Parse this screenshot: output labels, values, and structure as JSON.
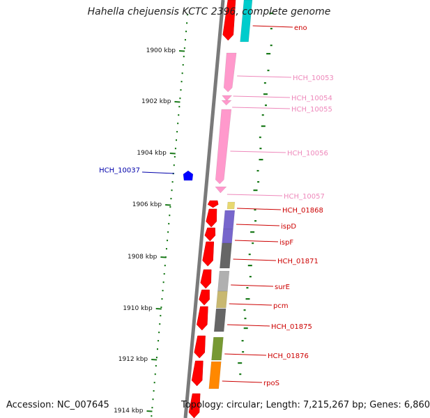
{
  "title": "Hahella chejuensis KCTC 2396, complete genome",
  "footer": {
    "accession": "Accession: NC_007645",
    "topology": "Topology: circular; Length: 7,215,267 bp; Genes: 6,860"
  },
  "ticks": [
    "1900 kbp",
    "1902 kbp",
    "1904 kbp",
    "1906 kbp",
    "1908 kbp",
    "1910 kbp",
    "1912 kbp",
    "1914 kbp"
  ],
  "colors": {
    "backbone": "#808080",
    "red_gene": "#ff0000",
    "pink_gene": "#ff99cc",
    "label_red": "#cc0000",
    "label_pink": "#ee88bb",
    "label_blue": "#0000aa",
    "tick_green": "#1a7a1a"
  },
  "genes": [
    {
      "label": "eno",
      "color": "#00cccc",
      "label_color": "#cc0000"
    },
    {
      "label": "HCH_10053",
      "color": "#ff99cc",
      "label_color": "#ee88bb"
    },
    {
      "label": "HCH_10054",
      "color": "#ff99cc",
      "label_color": "#ee88bb"
    },
    {
      "label": "HCH_10055",
      "color": "#ff99cc",
      "label_color": "#ee88bb"
    },
    {
      "label": "HCH_10056",
      "color": "#ff99cc",
      "label_color": "#ee88bb"
    },
    {
      "label": "HCH_10057",
      "color": "#ff99cc",
      "label_color": "#ee88bb"
    },
    {
      "label": "HCH_01868",
      "color": "#e8d870",
      "label_color": "#cc0000"
    },
    {
      "label": "ispD",
      "color": "#7766cc",
      "label_color": "#cc0000"
    },
    {
      "label": "ispF",
      "color": "#7766cc",
      "label_color": "#cc0000"
    },
    {
      "label": "HCH_01871",
      "color": "#666666",
      "label_color": "#cc0000"
    },
    {
      "label": "surE",
      "color": "#b0b0b0",
      "label_color": "#cc0000"
    },
    {
      "label": "pcm",
      "color": "#c8b870",
      "label_color": "#cc0000"
    },
    {
      "label": "HCH_01875",
      "color": "#666666",
      "label_color": "#cc0000"
    },
    {
      "label": "HCH_01876",
      "color": "#779933",
      "label_color": "#cc0000"
    },
    {
      "label": "rpoS",
      "color": "#ff8800",
      "label_color": "#cc0000"
    },
    {
      "label": "HCH_10037",
      "color": "#0000ff",
      "label_color": "#0000aa"
    }
  ]
}
